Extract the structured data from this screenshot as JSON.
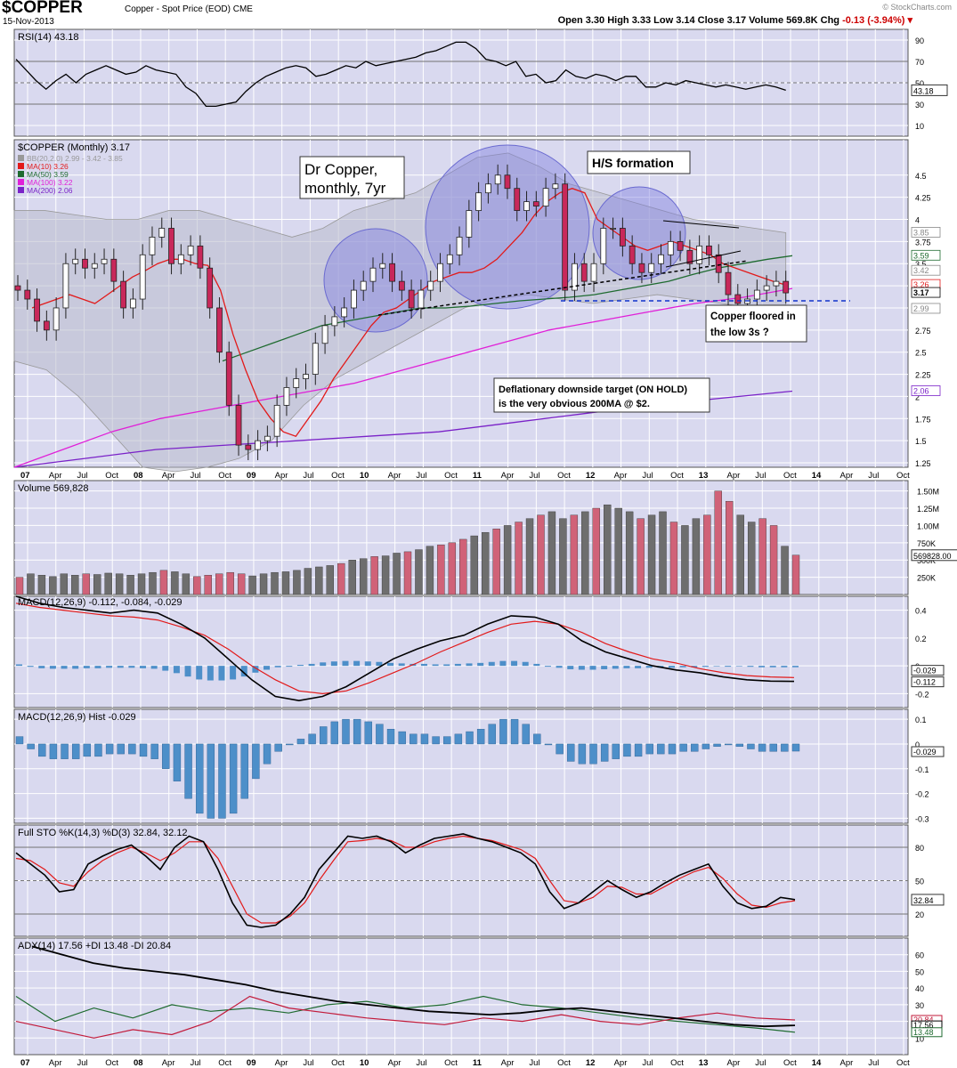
{
  "header": {
    "symbol": "$COPPER",
    "description": "Copper - Spot Price (EOD)",
    "exchange": "CME",
    "date": "15-Nov-2013",
    "ohlc": "Open 3.30  High 3.33  Low 3.14  Close 3.17  Volume 569.8K  Chg",
    "change": "-0.13 (-3.94%)",
    "copyright": "© StockCharts.com"
  },
  "colors": {
    "panel_bg": "#d9d9ef",
    "grid": "#ffffff",
    "up": "#ffffff",
    "down": "#c8285a",
    "ma10": "#e21a1a",
    "ma50": "#1f6b30",
    "ma100": "#e020d8",
    "ma200": "#7a22c8",
    "bollinger": "#b9bccc",
    "macd_hist": "#4d8fc9",
    "vol_up": "#6e6e6e",
    "vol_down": "#d06278"
  },
  "x_axis": {
    "labels": [
      "07",
      "Apr",
      "Jul",
      "Oct",
      "08",
      "Apr",
      "Jul",
      "Oct",
      "09",
      "Apr",
      "Jul",
      "Oct",
      "10",
      "Apr",
      "Jul",
      "Oct",
      "11",
      "Apr",
      "Jul",
      "Oct",
      "12",
      "Apr",
      "Jul",
      "Oct",
      "13",
      "Apr",
      "Jul",
      "Oct",
      "14",
      "Apr",
      "Jul",
      "Oct"
    ],
    "bold": [
      "07",
      "08",
      "09",
      "10",
      "11",
      "12",
      "13",
      "14"
    ]
  },
  "chart_data": [
    {
      "panel": "rsi",
      "type": "line",
      "title": "RSI(14) 43.18",
      "ylim": [
        0,
        100
      ],
      "yticks": [
        10,
        30,
        50,
        70,
        90
      ],
      "levels": [
        30,
        70
      ],
      "last_label": "43.18",
      "values": [
        72,
        62,
        52,
        44,
        52,
        58,
        50,
        58,
        62,
        66,
        62,
        58,
        60,
        66,
        62,
        60,
        58,
        46,
        40,
        28,
        28,
        30,
        32,
        42,
        50,
        56,
        60,
        64,
        66,
        64,
        56,
        58,
        62,
        66,
        64,
        70,
        66,
        68,
        70,
        72,
        74,
        78,
        80,
        84,
        88,
        88,
        82,
        72,
        70,
        66,
        70,
        56,
        58,
        50,
        52,
        62,
        56,
        54,
        58,
        56,
        52,
        56,
        56,
        46,
        46,
        50,
        48,
        52,
        50,
        48,
        46,
        48,
        46,
        44,
        46,
        48,
        46,
        43
      ]
    },
    {
      "panel": "price",
      "type": "line",
      "title": "$COPPER (Monthly) 3.17",
      "x_unit": "monthly bars Jan 2007 - Nov 2013",
      "ylim": [
        1.2,
        4.9
      ],
      "yticks": [
        1.25,
        1.5,
        1.75,
        2.0,
        2.25,
        2.5,
        2.75,
        3.0,
        3.25,
        3.5,
        3.75,
        4.0,
        4.25,
        4.5
      ],
      "legend": [
        {
          "name": "BB(20,2.0) 2.99 - 3.42 - 3.85",
          "color": "#999999"
        },
        {
          "name": "MA(10) 3.26",
          "color": "#e21a1a"
        },
        {
          "name": "MA(50) 3.59",
          "color": "#1f6b30"
        },
        {
          "name": "MA(100) 3.22",
          "color": "#e020d8"
        },
        {
          "name": "MA(200) 2.06",
          "color": "#7a22c8"
        }
      ],
      "right_labels": [
        "3.85",
        "3.59",
        "3.42",
        "3.26",
        "3.17",
        "2.99",
        "2.06"
      ],
      "close": [
        3.2,
        3.1,
        2.85,
        2.75,
        3.0,
        3.5,
        3.55,
        3.45,
        3.5,
        3.55,
        3.3,
        3.0,
        3.1,
        3.6,
        3.8,
        3.9,
        3.5,
        3.6,
        3.7,
        3.45,
        3.0,
        2.5,
        1.9,
        1.45,
        1.4,
        1.5,
        1.55,
        1.9,
        2.1,
        2.2,
        2.25,
        2.6,
        2.8,
        2.9,
        3.0,
        3.2,
        3.3,
        3.45,
        3.5,
        3.3,
        3.2,
        3.0,
        3.2,
        3.3,
        3.5,
        3.6,
        3.8,
        4.1,
        4.3,
        4.4,
        4.5,
        4.35,
        4.1,
        4.2,
        4.15,
        4.35,
        4.4,
        3.2,
        3.5,
        3.3,
        3.5,
        3.9,
        3.9,
        3.7,
        3.5,
        3.4,
        3.5,
        3.6,
        3.75,
        3.65,
        3.5,
        3.7,
        3.6,
        3.4,
        3.15,
        3.05,
        3.1,
        3.2,
        3.25,
        3.3,
        3.17
      ],
      "ma10": [
        3.0,
        3.05,
        3.1,
        3.15,
        3.1,
        3.05,
        3.15,
        3.25,
        3.35,
        3.42,
        3.5,
        3.55,
        3.55,
        3.5,
        3.48,
        3.2,
        2.7,
        2.3,
        1.95,
        1.75,
        1.6,
        1.55,
        1.75,
        1.95,
        2.2,
        2.4,
        2.6,
        2.8,
        2.95,
        3.0,
        3.1,
        3.2,
        3.3,
        3.35,
        3.4,
        3.4,
        3.45,
        3.55,
        3.7,
        3.85,
        4.05,
        4.2,
        4.3,
        4.35,
        4.3,
        4.0,
        3.9,
        3.8,
        3.7,
        3.65,
        3.7,
        3.75,
        3.7,
        3.65,
        3.6,
        3.5,
        3.45,
        3.4,
        3.35,
        3.3,
        3.26
      ],
      "ma50": [
        2.4,
        2.5,
        2.6,
        2.7,
        2.8,
        2.85,
        2.9,
        2.95,
        3.0,
        3.0,
        3.02,
        3.05,
        3.08,
        3.1,
        3.12,
        3.15,
        3.2,
        3.25,
        3.3,
        3.38,
        3.45,
        3.5,
        3.55,
        3.59
      ],
      "ma100": [
        1.2,
        1.4,
        1.6,
        1.75,
        1.85,
        1.95,
        2.05,
        2.15,
        2.3,
        2.45,
        2.6,
        2.75,
        2.85,
        2.95,
        3.05,
        3.12,
        3.22
      ],
      "ma200": [
        1.2,
        1.3,
        1.4,
        1.45,
        1.5,
        1.55,
        1.6,
        1.7,
        1.8,
        1.9,
        1.98,
        2.06
      ],
      "bb_upper": [
        4.1,
        4.1,
        4.05,
        4.0,
        4.0,
        4.1,
        4.1,
        4.0,
        3.9,
        3.8,
        3.9,
        4.1,
        4.2,
        4.3,
        4.5,
        4.7,
        4.75,
        4.6,
        4.4,
        4.3,
        4.2,
        4.1,
        4.0,
        3.95,
        3.9,
        3.85
      ],
      "bb_lower": [
        2.4,
        2.3,
        2.0,
        1.6,
        1.2,
        1.15,
        1.2,
        1.3,
        1.5,
        1.9,
        2.2,
        2.4,
        2.6,
        2.8,
        3.0,
        3.1,
        3.15,
        3.1,
        3.05,
        3.1,
        3.15,
        3.1,
        3.05,
        3.0,
        2.99
      ],
      "annotations": [
        {
          "text": "Dr Copper, monthly, 7yr"
        },
        {
          "text": "H/S formation"
        },
        {
          "text": "Copper floored in the low 3s ?"
        },
        {
          "text": "Deflationary downside target (ON HOLD) is the very obvious 200MA @ $2."
        }
      ]
    },
    {
      "panel": "volume",
      "type": "bar",
      "title": "Volume 569,828",
      "yticks_labels": [
        "250K",
        "500K",
        "750K",
        "1.00M",
        "1.25M",
        "1.50M"
      ],
      "yticks": [
        250,
        500,
        750,
        1000,
        1250,
        1500
      ],
      "last_label": "569828.00",
      "values_k": [
        250,
        300,
        280,
        260,
        300,
        280,
        300,
        290,
        310,
        300,
        280,
        300,
        320,
        350,
        330,
        300,
        260,
        280,
        300,
        320,
        300,
        270,
        300,
        320,
        330,
        350,
        380,
        400,
        420,
        450,
        500,
        520,
        550,
        560,
        600,
        620,
        650,
        700,
        720,
        750,
        800,
        850,
        900,
        950,
        1000,
        1050,
        1100,
        1150,
        1200,
        1100,
        1150,
        1200,
        1250,
        1300,
        1250,
        1200,
        1100,
        1150,
        1200,
        1050,
        1000,
        1100,
        1150,
        1500,
        1350,
        1150,
        1050,
        1100,
        1000,
        700,
        570
      ],
      "down_flags": [
        1,
        0,
        0,
        0,
        0,
        0,
        1,
        0,
        0,
        0,
        0,
        0,
        0,
        1,
        0,
        0,
        1,
        1,
        1,
        1,
        1,
        0,
        0,
        0,
        0,
        0,
        0,
        0,
        0,
        1,
        0,
        0,
        1,
        0,
        0,
        1,
        0,
        0,
        1,
        1,
        1,
        0,
        0,
        1,
        0,
        1,
        0,
        1,
        0,
        0,
        1,
        0,
        1,
        0,
        0,
        0,
        1,
        0,
        0,
        1,
        0,
        0,
        1,
        1,
        1,
        0,
        0,
        1,
        1,
        0,
        1
      ]
    },
    {
      "panel": "macd",
      "type": "line",
      "title": "MACD(12,26,9) -0.112, -0.084, -0.029",
      "ylim": [
        -0.3,
        0.5
      ],
      "yticks": [
        -0.2,
        0.0,
        0.2,
        0.4
      ],
      "last_labels": [
        "-0.029",
        "-0.112"
      ],
      "macd": [
        0.5,
        0.45,
        0.42,
        0.4,
        0.38,
        0.4,
        0.38,
        0.3,
        0.2,
        0.05,
        -0.1,
        -0.22,
        -0.25,
        -0.22,
        -0.15,
        -0.05,
        0.05,
        0.12,
        0.18,
        0.22,
        0.3,
        0.36,
        0.35,
        0.3,
        0.18,
        0.1,
        0.05,
        0.0,
        -0.03,
        -0.05,
        -0.08,
        -0.1,
        -0.11,
        -0.112
      ],
      "signal": [
        0.45,
        0.42,
        0.4,
        0.38,
        0.36,
        0.35,
        0.33,
        0.28,
        0.22,
        0.12,
        0.0,
        -0.1,
        -0.18,
        -0.2,
        -0.18,
        -0.12,
        -0.05,
        0.02,
        0.1,
        0.17,
        0.24,
        0.3,
        0.32,
        0.3,
        0.24,
        0.16,
        0.1,
        0.05,
        0.02,
        -0.02,
        -0.05,
        -0.07,
        -0.08,
        -0.084
      ]
    },
    {
      "panel": "macd_hist",
      "type": "bar",
      "title": "MACD(12,26,9) Hist -0.029",
      "ylim": [
        -0.32,
        0.14
      ],
      "yticks": [
        -0.3,
        -0.2,
        -0.1,
        0.0,
        0.1
      ],
      "last_label": "-0.029",
      "values": [
        0.03,
        -0.02,
        -0.05,
        -0.06,
        -0.06,
        -0.06,
        -0.05,
        -0.05,
        -0.04,
        -0.04,
        -0.04,
        -0.05,
        -0.06,
        -0.1,
        -0.15,
        -0.22,
        -0.28,
        -0.3,
        -0.3,
        -0.28,
        -0.22,
        -0.14,
        -0.08,
        -0.03,
        0.0,
        0.02,
        0.04,
        0.07,
        0.09,
        0.1,
        0.1,
        0.09,
        0.08,
        0.06,
        0.05,
        0.04,
        0.04,
        0.03,
        0.03,
        0.04,
        0.05,
        0.06,
        0.08,
        0.1,
        0.1,
        0.08,
        0.04,
        0.0,
        -0.04,
        -0.07,
        -0.08,
        -0.08,
        -0.07,
        -0.06,
        -0.05,
        -0.05,
        -0.04,
        -0.04,
        -0.04,
        -0.03,
        -0.03,
        -0.02,
        -0.01,
        0.0,
        -0.01,
        -0.02,
        -0.03,
        -0.03,
        -0.03,
        -0.029
      ]
    },
    {
      "panel": "stoch",
      "type": "line",
      "title": "Full STO %K(14,3) %D(3) 32.84, 32.12",
      "ylim": [
        0,
        100
      ],
      "yticks": [
        20,
        50,
        80
      ],
      "levels": [
        20,
        80
      ],
      "last_label": "32.84",
      "k": [
        75,
        65,
        55,
        40,
        42,
        65,
        72,
        78,
        82,
        72,
        60,
        80,
        90,
        85,
        60,
        30,
        10,
        8,
        10,
        20,
        35,
        60,
        75,
        90,
        88,
        90,
        85,
        75,
        82,
        88,
        90,
        92,
        88,
        85,
        80,
        75,
        65,
        40,
        25,
        30,
        40,
        50,
        42,
        35,
        40,
        48,
        55,
        60,
        65,
        45,
        30,
        25,
        27,
        35,
        33
      ],
      "d": [
        70,
        68,
        60,
        48,
        45,
        58,
        68,
        75,
        80,
        75,
        68,
        75,
        85,
        85,
        70,
        45,
        20,
        12,
        12,
        18,
        30,
        50,
        68,
        85,
        86,
        88,
        86,
        80,
        80,
        85,
        88,
        90,
        88,
        86,
        82,
        78,
        70,
        50,
        32,
        30,
        35,
        45,
        44,
        38,
        38,
        45,
        52,
        58,
        62,
        52,
        38,
        28,
        26,
        30,
        32
      ]
    },
    {
      "panel": "adx",
      "type": "line",
      "title": "ADX(14) 17.56  +DI 13.48  -DI 20.84",
      "ylim": [
        0,
        70
      ],
      "yticks": [
        10,
        20,
        30,
        40,
        50,
        60
      ],
      "last_labels": [
        "20.84",
        "17.56",
        "13.48"
      ],
      "adx": [
        65,
        60,
        55,
        52,
        50,
        48,
        45,
        42,
        38,
        35,
        32,
        30,
        28,
        26,
        25,
        24,
        25,
        27,
        28,
        26,
        24,
        22,
        20,
        18,
        17,
        17.56
      ],
      "plus_di": [
        35,
        20,
        28,
        22,
        30,
        26,
        28,
        25,
        30,
        32,
        28,
        30,
        35,
        30,
        28,
        25,
        22,
        20,
        18,
        16,
        13.48
      ],
      "minus_di": [
        20,
        15,
        10,
        15,
        12,
        20,
        35,
        28,
        25,
        22,
        20,
        18,
        22,
        20,
        24,
        20,
        18,
        22,
        25,
        22,
        20.84
      ]
    }
  ]
}
